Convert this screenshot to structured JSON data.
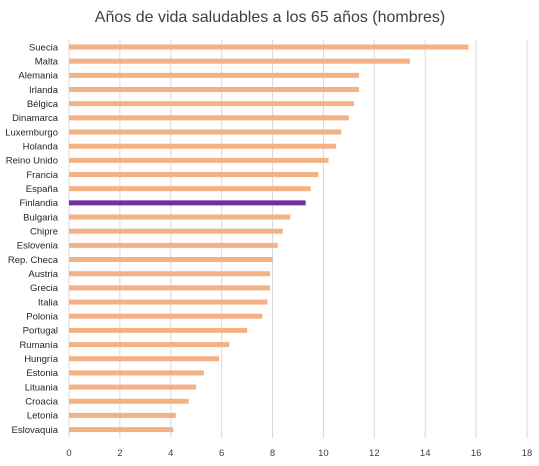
{
  "chart_data": {
    "type": "bar",
    "orientation": "horizontal",
    "title": "Años de vida saludables a los 65 años (hombres)",
    "xlabel": "",
    "ylabel": "",
    "xlim": [
      0,
      18
    ],
    "xticks": [
      0,
      2,
      4,
      6,
      8,
      10,
      12,
      14,
      16,
      18
    ],
    "grid": true,
    "categories": [
      "Suecia",
      "Malta",
      "Alemania",
      "Irlanda",
      "Bélgica",
      "Dinamarca",
      "Luxemburgo",
      "Holanda",
      "Reino Unido",
      "Francia",
      "España",
      "Finlandia",
      "Bulgaria",
      "Chipre",
      "Eslovenia",
      "Rep. Checa",
      "Austria",
      "Grecia",
      "Italia",
      "Polonia",
      "Portugal",
      "Rumanía",
      "Hungría",
      "Estonia",
      "Lituania",
      "Croacia",
      "Letonia",
      "Eslovaquia"
    ],
    "values": [
      15.7,
      13.4,
      11.4,
      11.4,
      11.2,
      11.0,
      10.7,
      10.5,
      10.2,
      9.8,
      9.5,
      9.3,
      8.7,
      8.4,
      8.2,
      8.0,
      7.9,
      7.9,
      7.8,
      7.6,
      7.0,
      6.3,
      5.9,
      5.3,
      5.0,
      4.7,
      4.2,
      4.1
    ],
    "highlight": "Finlandia",
    "colors": {
      "bar": "#f4b183",
      "highlight": "#7030a0"
    }
  }
}
